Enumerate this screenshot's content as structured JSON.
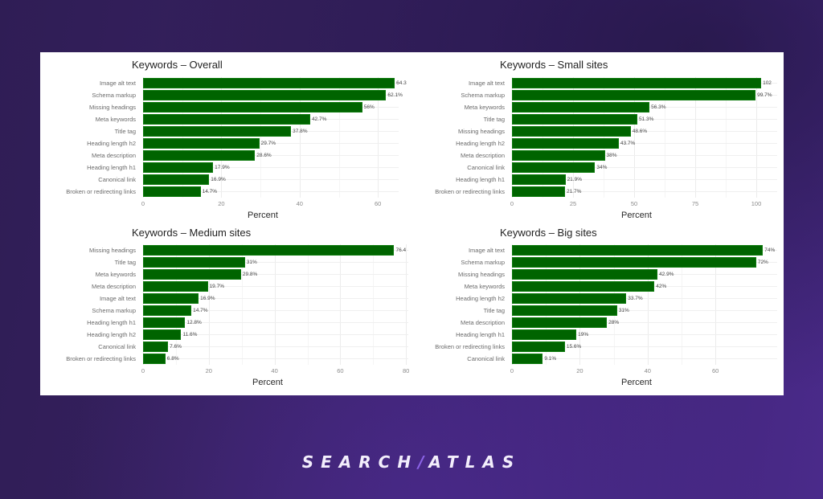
{
  "brand": {
    "name_left": "SEARCH",
    "separator": "/",
    "name_right": "ATLAS"
  },
  "colors": {
    "bar": "#006400",
    "panel": "#ffffff",
    "background_start": "#2f1d55",
    "background_end": "#4a2a8a",
    "logo_accent": "#8b63e6"
  },
  "chart_data": [
    {
      "type": "bar",
      "orientation": "horizontal",
      "title": "Keywords – Overall",
      "xlabel": "Percent",
      "ylabel": "",
      "xlim": [
        0,
        66
      ],
      "ticks": [
        0,
        20,
        40,
        60
      ],
      "grid": true,
      "categories": [
        "Image alt text",
        "Schema markup",
        "Missing headings",
        "Meta keywords",
        "Title tag",
        "Heading length h2",
        "Meta description",
        "Heading length h1",
        "Canonical link",
        "Broken or redirecting links"
      ],
      "values": [
        64.3,
        62.1,
        56,
        42.7,
        37.8,
        29.7,
        28.6,
        17.9,
        16.9,
        14.7
      ],
      "labels": [
        "64.3",
        "62.1%",
        "56%",
        "42.7%",
        "37.8%",
        "29.7%",
        "28.6%",
        "17.9%",
        "16.9%",
        "14.7%"
      ]
    },
    {
      "type": "bar",
      "orientation": "horizontal",
      "title": "Keywords – Small sites",
      "xlabel": "Percent",
      "ylabel": "",
      "xlim": [
        0,
        108
      ],
      "ticks": [
        0,
        25,
        50,
        75,
        100
      ],
      "grid": true,
      "categories": [
        "Image alt text",
        "Schema markup",
        "Meta keywords",
        "Title tag",
        "Missing headings",
        "Heading length h2",
        "Meta description",
        "Canonical link",
        "Heading length h1",
        "Broken or redirecting links"
      ],
      "values": [
        102,
        99.7,
        56.3,
        51.3,
        48.6,
        43.7,
        38,
        34,
        21.9,
        21.7
      ],
      "labels": [
        "102",
        "99.7%",
        "56.3%",
        "51.3%",
        "48.6%",
        "43.7%",
        "38%",
        "34%",
        "21.9%",
        "21.7%"
      ]
    },
    {
      "type": "bar",
      "orientation": "horizontal",
      "title": "Keywords – Medium sites",
      "xlabel": "Percent",
      "ylabel": "",
      "xlim": [
        0,
        80
      ],
      "ticks": [
        0,
        20,
        40,
        60,
        80
      ],
      "grid": true,
      "categories": [
        "Missing headings",
        "Title tag",
        "Meta keywords",
        "Meta description",
        "Image alt text",
        "Schema markup",
        "Heading length h1",
        "Heading length h2",
        "Canonical link",
        "Broken or redirecting links"
      ],
      "values": [
        76.4,
        31,
        29.8,
        19.7,
        16.9,
        14.7,
        12.8,
        11.6,
        7.6,
        6.8
      ],
      "labels": [
        "76.4",
        "31%",
        "29.8%",
        "19.7%",
        "16.9%",
        "14.7%",
        "12.8%",
        "11.6%",
        "7.6%",
        "6.8%"
      ]
    },
    {
      "type": "bar",
      "orientation": "horizontal",
      "title": "Keywords – Big sites",
      "xlabel": "Percent",
      "ylabel": "",
      "xlim": [
        0,
        77
      ],
      "ticks": [
        0,
        20,
        40,
        60
      ],
      "grid": true,
      "categories": [
        "Image alt text",
        "Schema markup",
        "Missing headings",
        "Meta keywords",
        "Heading length h2",
        "Title tag",
        "Meta description",
        "Heading length h1",
        "Broken or redirecting links",
        "Canonical link"
      ],
      "values": [
        74,
        72,
        42.9,
        42,
        33.7,
        31,
        28,
        19,
        15.6,
        9.1
      ],
      "labels": [
        "74%",
        "72%",
        "42.9%",
        "42%",
        "33.7%",
        "31%",
        "28%",
        "19%",
        "15.6%",
        "9.1%"
      ]
    }
  ]
}
